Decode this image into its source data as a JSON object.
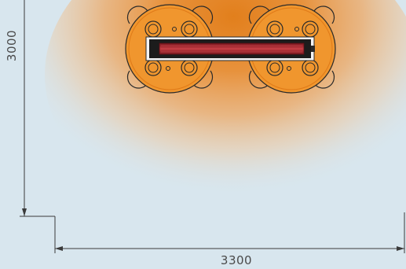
{
  "dimensions": {
    "height_label": "3000",
    "width_label": "3300"
  },
  "colors": {
    "background": "#d8e6ee",
    "heat_core": "#e88a2a",
    "table_fill": "#f0962e",
    "outline": "#2a2a2a",
    "heater_body": "#1c1c1c",
    "heater_element": "#b8323a"
  },
  "icons": {
    "heater": "infrared-heater-icon",
    "table": "round-table-icon",
    "chair": "chair-icon"
  }
}
